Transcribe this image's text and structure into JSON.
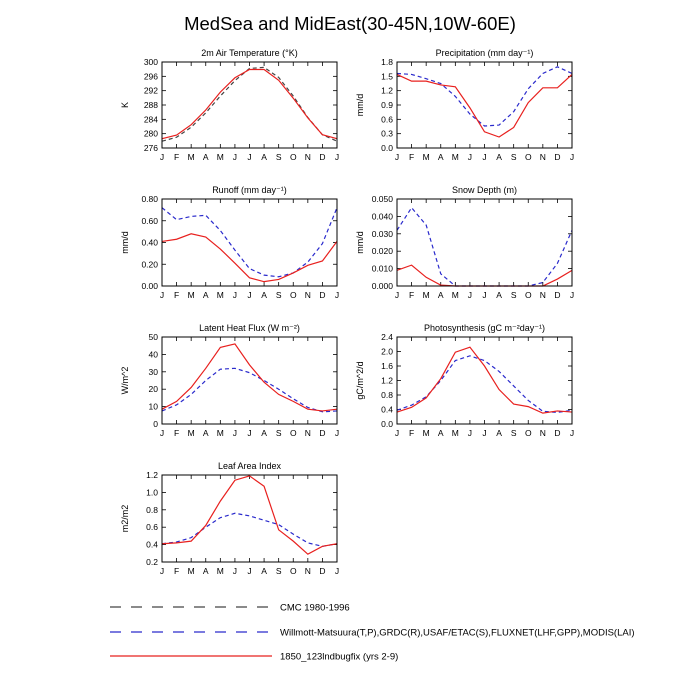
{
  "figure_title": "MedSea and MidEast(30-45N,10W-60E)",
  "months": [
    "J",
    "F",
    "M",
    "A",
    "M",
    "J",
    "J",
    "A",
    "S",
    "O",
    "N",
    "D",
    "J"
  ],
  "legend": [
    {
      "label": "CMC 1980-1996",
      "color": "#444444",
      "style": "dash"
    },
    {
      "label": "Willmott-Matsuura(T,P),GRDC(R),USAF/ETAC(S),FLUXNET(LHF,GPP),MODIS(LAI)",
      "color": "#2a2acc",
      "style": "dash"
    },
    {
      "label": "1850_123lndbugfix (yrs 2-9)",
      "color": "#e8201e",
      "style": "solid"
    }
  ],
  "chart_data": [
    {
      "type": "line",
      "title": "2m Air Temperature (°K)",
      "ylabel": "K",
      "ylim": [
        276,
        300
      ],
      "yticks": [
        276,
        280,
        284,
        288,
        292,
        296,
        300
      ],
      "tick_decimals": 0,
      "series": [
        {
          "name": "CMC 1980-1996",
          "values": [
            277.9,
            279.0,
            281.8,
            285.8,
            290.5,
            294.8,
            298.2,
            298.5,
            295.7,
            290.5,
            284.5,
            279.7,
            277.9
          ]
        },
        {
          "name": "1850_123lndbugfix (yrs 2-9)",
          "values": [
            278.6,
            279.6,
            282.5,
            286.6,
            291.6,
            295.6,
            297.9,
            297.9,
            294.9,
            289.9,
            284.4,
            279.7,
            278.6
          ]
        }
      ]
    },
    {
      "type": "line",
      "title": "Precipitation (mm day⁻¹)",
      "ylabel": "mm/d",
      "ylim": [
        0.0,
        1.8
      ],
      "yticks": [
        0.0,
        0.3,
        0.6,
        0.9,
        1.2,
        1.5,
        1.8
      ],
      "tick_decimals": 1,
      "series": [
        {
          "name": "Willmott-Matsuura(T,P),GRDC(R),USAF/ETAC(S),FLUXNET(LHF,GPP),MODIS(LAI)",
          "values": [
            1.56,
            1.54,
            1.45,
            1.35,
            1.08,
            0.71,
            0.46,
            0.48,
            0.76,
            1.24,
            1.56,
            1.7,
            1.56
          ]
        },
        {
          "name": "1850_123lndbugfix (yrs 2-9)",
          "values": [
            1.54,
            1.4,
            1.4,
            1.32,
            1.28,
            0.84,
            0.34,
            0.23,
            0.43,
            0.95,
            1.26,
            1.26,
            1.54
          ]
        }
      ]
    },
    {
      "type": "line",
      "title": "Runoff (mm day⁻¹)",
      "ylabel": "mm/d",
      "ylim": [
        0.0,
        0.8
      ],
      "yticks": [
        0.0,
        0.2,
        0.4,
        0.6,
        0.8
      ],
      "tick_decimals": 2,
      "series": [
        {
          "name": "Willmott-Matsuura(T,P),GRDC(R),USAF/ETAC(S),FLUXNET(LHF,GPP),MODIS(LAI)",
          "values": [
            0.72,
            0.61,
            0.64,
            0.65,
            0.51,
            0.33,
            0.16,
            0.1,
            0.085,
            0.12,
            0.22,
            0.39,
            0.72
          ]
        },
        {
          "name": "1850_123lndbugfix (yrs 2-9)",
          "values": [
            0.41,
            0.43,
            0.48,
            0.45,
            0.34,
            0.21,
            0.075,
            0.04,
            0.06,
            0.12,
            0.19,
            0.23,
            0.41
          ]
        }
      ]
    },
    {
      "type": "line",
      "title": "Snow Depth (m)",
      "ylabel": "mm/d",
      "ylim": [
        0.0,
        0.05
      ],
      "yticks": [
        0.0,
        0.01,
        0.02,
        0.03,
        0.04,
        0.05
      ],
      "tick_decimals": 3,
      "series": [
        {
          "name": "Willmott-Matsuura(T,P),GRDC(R),USAF/ETAC(S),FLUXNET(LHF,GPP),MODIS(LAI)",
          "values": [
            0.032,
            0.045,
            0.035,
            0.007,
            0.0,
            0.0,
            0.0,
            0.0,
            0.0,
            0.0,
            0.002,
            0.013,
            0.032
          ]
        },
        {
          "name": "1850_123lndbugfix (yrs 2-9)",
          "values": [
            0.009,
            0.012,
            0.005,
            0.0005,
            0.0,
            0.0,
            0.0,
            0.0,
            0.0,
            0.0,
            0.0,
            0.004,
            0.009
          ]
        }
      ]
    },
    {
      "type": "line",
      "title": "Latent Heat Flux (W m⁻²)",
      "ylabel": "W/m^2",
      "ylim": [
        0,
        50
      ],
      "yticks": [
        0,
        10,
        20,
        30,
        40,
        50
      ],
      "tick_decimals": 0,
      "series": [
        {
          "name": "Willmott-Matsuura(T,P),GRDC(R),USAF/ETAC(S),FLUXNET(LHF,GPP),MODIS(LAI)",
          "values": [
            7.5,
            11.0,
            17.0,
            25.0,
            31.5,
            32.0,
            29.5,
            25.0,
            20.0,
            14.5,
            9.5,
            7.0,
            7.5
          ]
        },
        {
          "name": "1850_123lndbugfix (yrs 2-9)",
          "values": [
            8.5,
            13.0,
            21.0,
            32.0,
            44.0,
            46.0,
            34.0,
            24.0,
            17.0,
            13.0,
            8.5,
            7.5,
            8.5
          ]
        }
      ]
    },
    {
      "type": "line",
      "title": "Photosynthesis (gC m⁻²day⁻¹)",
      "ylabel": "gC/m^2/d",
      "ylim": [
        0.0,
        2.4
      ],
      "yticks": [
        0.0,
        0.4,
        0.8,
        1.2,
        1.6,
        2.0,
        2.4
      ],
      "tick_decimals": 1,
      "series": [
        {
          "name": "Willmott-Matsuura(T,P),GRDC(R),USAF/ETAC(S),FLUXNET(LHF,GPP),MODIS(LAI)",
          "values": [
            0.38,
            0.52,
            0.75,
            1.2,
            1.75,
            1.88,
            1.75,
            1.45,
            1.05,
            0.65,
            0.35,
            0.32,
            0.38
          ]
        },
        {
          "name": "1850_123lndbugfix (yrs 2-9)",
          "values": [
            0.33,
            0.46,
            0.72,
            1.25,
            1.98,
            2.12,
            1.6,
            0.95,
            0.55,
            0.48,
            0.3,
            0.36,
            0.33
          ]
        }
      ]
    },
    {
      "type": "line",
      "title": "Leaf Area Index",
      "ylabel": "m2/m2",
      "ylim": [
        0.2,
        1.2
      ],
      "yticks": [
        0.2,
        0.4,
        0.6,
        0.8,
        1.0,
        1.2
      ],
      "tick_decimals": 1,
      "series": [
        {
          "name": "Willmott-Matsuura(T,P),GRDC(R),USAF/ETAC(S),FLUXNET(LHF,GPP),MODIS(LAI)",
          "values": [
            0.41,
            0.43,
            0.48,
            0.6,
            0.71,
            0.76,
            0.73,
            0.68,
            0.63,
            0.52,
            0.42,
            0.38,
            0.41
          ]
        },
        {
          "name": "1850_123lndbugfix (yrs 2-9)",
          "values": [
            0.41,
            0.42,
            0.44,
            0.62,
            0.9,
            1.14,
            1.19,
            1.07,
            0.57,
            0.44,
            0.29,
            0.38,
            0.41
          ]
        }
      ]
    }
  ]
}
